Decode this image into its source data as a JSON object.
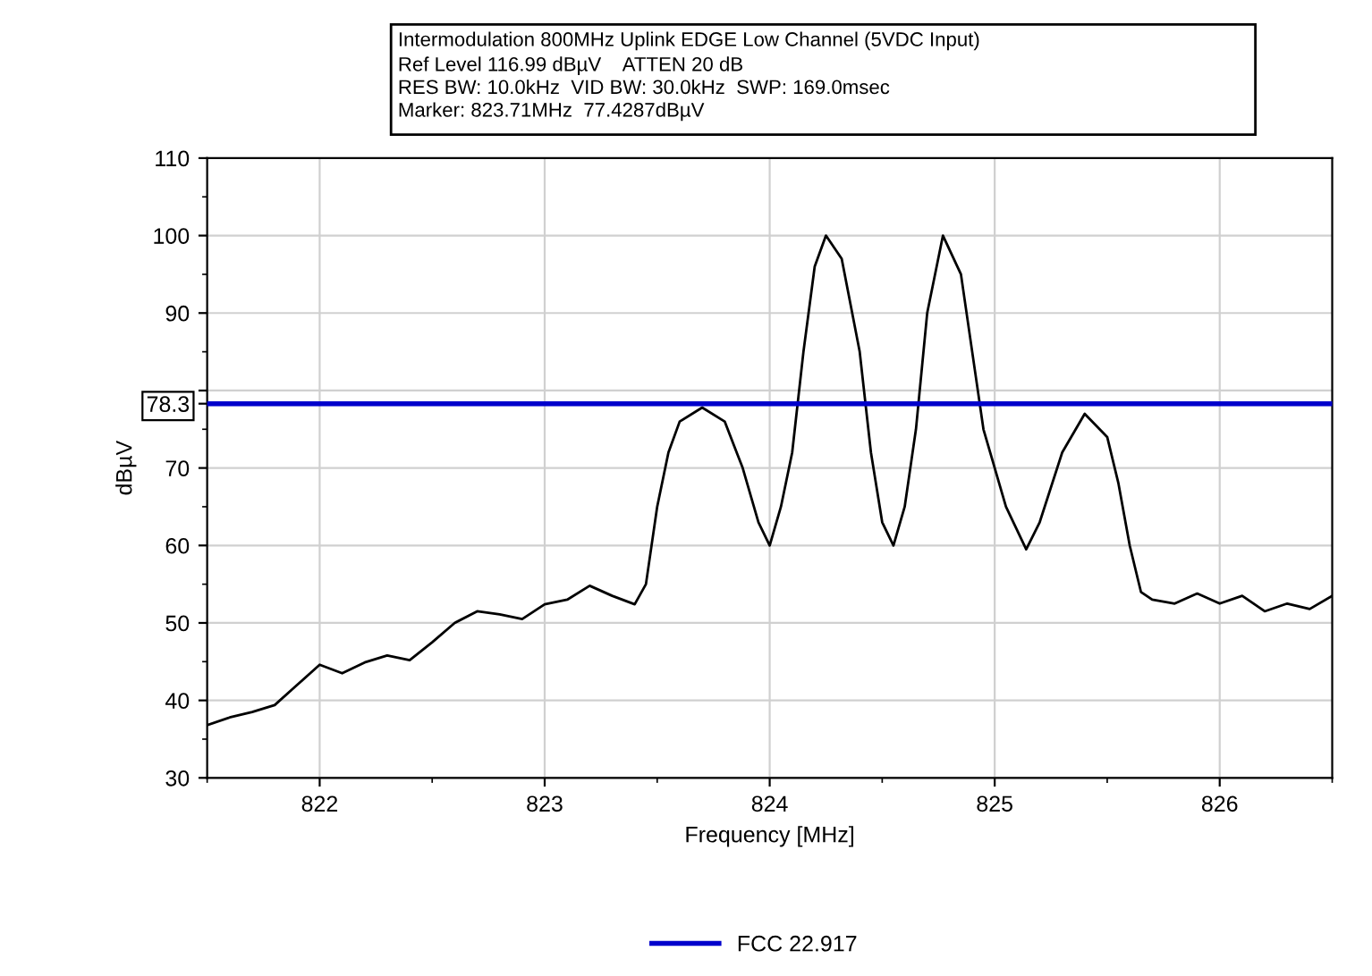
{
  "chart_data": {
    "type": "line",
    "title": "Intermodulation 800MHz Uplink EDGE Low Channel (5VDC Input)",
    "subtitle": "Ref Level 116.99 dBµV    ATTEN 20 dB\nRES BW: 10.0kHz  VID BW: 30.0kHz  SWP: 169.0msec\nMarker: 823.71MHz  77.4287dBµV",
    "xlabel": "Frequency [MHz]",
    "ylabel": "dBµV",
    "xlim": [
      821.5,
      826.5
    ],
    "xticks": [
      822,
      823,
      824,
      825,
      826
    ],
    "ylim": [
      30,
      110
    ],
    "yticks": [
      30,
      40,
      50,
      60,
      70,
      78.3,
      {
        "value": 80,
        "label": null
      },
      90,
      100,
      110
    ],
    "grid": true,
    "legend": "bottom",
    "line_style": "solid",
    "marker": "none",
    "ref_lines": [
      {
        "axis": "y",
        "value": 78.3,
        "label": "FCC 22.917",
        "color": "#0000cc"
      }
    ],
    "series": [
      {
        "color": "#000000",
        "x": [
          821.5,
          821.6,
          821.7,
          821.8,
          821.9,
          822.0,
          822.1,
          822.2,
          822.3,
          822.4,
          822.5,
          822.6,
          822.7,
          822.8,
          822.9,
          823.0,
          823.1,
          823.2,
          823.3,
          823.4,
          823.45,
          823.5,
          823.55,
          823.6,
          823.7,
          823.8,
          823.88,
          823.95,
          824.0,
          824.05,
          824.1,
          824.15,
          824.2,
          824.25,
          824.32,
          824.4,
          824.45,
          824.5,
          824.55,
          824.6,
          824.65,
          824.7,
          824.77,
          824.85,
          824.9,
          824.95,
          825.05,
          825.14,
          825.2,
          825.3,
          825.4,
          825.5,
          825.55,
          825.6,
          825.65,
          825.7,
          825.8,
          825.9,
          826.0,
          826.1,
          826.2,
          826.3,
          826.4,
          826.5
        ],
        "values": [
          36.8,
          37.8,
          38.5,
          39.4,
          42,
          44.6,
          43.5,
          44.9,
          45.8,
          45.2,
          47.5,
          50,
          51.5,
          51.1,
          50.5,
          52.4,
          53,
          54.8,
          53.5,
          52.4,
          55,
          65,
          72,
          76,
          77.8,
          76,
          70,
          63,
          60,
          65,
          72,
          85,
          96,
          100,
          97,
          85,
          72,
          63,
          60,
          65,
          75,
          90,
          100,
          95,
          85,
          75,
          65,
          59.5,
          63,
          72,
          77,
          74,
          68,
          60,
          54,
          53,
          52.5,
          53.8,
          52.5,
          53.5,
          51.5,
          52.5,
          51.8,
          53.5
        ]
      }
    ]
  }
}
